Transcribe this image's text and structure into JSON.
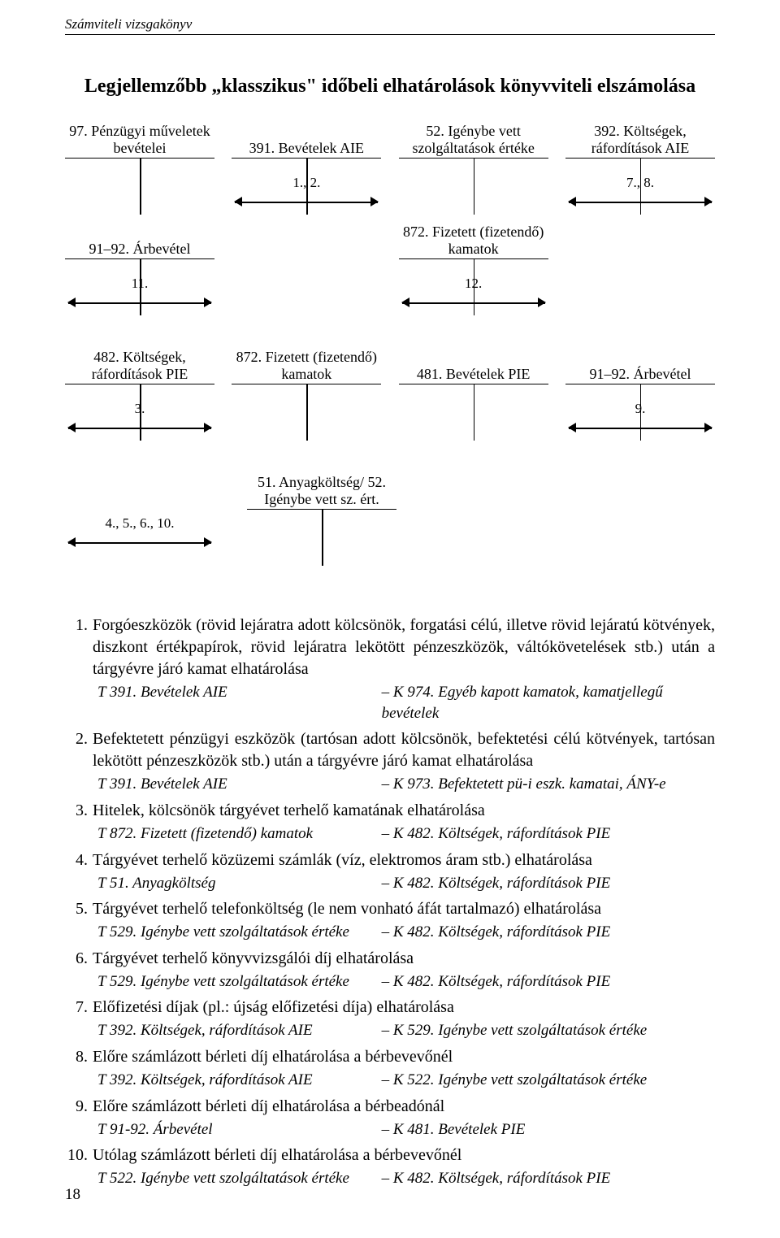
{
  "running_header": "Számviteli vizsgakönyv",
  "title": "Legjellemzőbb „klasszikus\" időbeli elhatárolások könyvviteli elszámolása",
  "page_number": "18",
  "diag": {
    "row1": [
      {
        "label": "97. Pénzügyi műveletek bevételei",
        "arrow": ""
      },
      {
        "label": "391. Bevételek AIE",
        "arrow": "1., 2."
      },
      {
        "label": "52. Igénybe vett szolgáltatások értéke",
        "arrow": ""
      },
      {
        "label": "392. Költségek, ráfordítások AIE",
        "arrow": "7., 8."
      }
    ],
    "row2": [
      {
        "label": "91–92. Árbevétel",
        "arrow": "11."
      },
      {
        "label": "",
        "arrow": "",
        "hidden": true
      },
      {
        "label": "872. Fizetett (fizetendő) kamatok",
        "arrow": "12."
      },
      {
        "label": "",
        "arrow": "",
        "hidden": true
      }
    ],
    "row3": [
      {
        "label": "482. Költségek, ráfordítások PIE",
        "arrow": "3."
      },
      {
        "label": "872. Fizetett (fizetendő) kamatok",
        "arrow": ""
      },
      {
        "label": "481. Bevételek PIE",
        "arrow": ""
      },
      {
        "label": "91–92. Árbevétel",
        "arrow": "9."
      }
    ],
    "row4": [
      {
        "label": "",
        "arrow": "4., 5., 6., 10.",
        "blank_label": true
      },
      {
        "label": "51. Anyagköltség/ 52. Igénybe vett sz. ért.",
        "arrow": ""
      }
    ]
  },
  "list": [
    {
      "n": "1.",
      "text": "Forgóeszközök (rövid lejáratra adott kölcsönök, forgatási célú, illetve rövid lejáratú kötvények, diszkont értékpapírok, rövid lejáratra lekötött pénzeszközök, váltókövetelések stb.) után a tárgyévre járó kamat elhatárolása",
      "subs": [
        {
          "l": "T 391. Bevételek AIE",
          "r": "– K 974. Egyéb kapott kamatok, kamatjellegű bevételek"
        }
      ]
    },
    {
      "n": "2.",
      "text": "Befektetett pénzügyi eszközök (tartósan adott kölcsönök, befektetési célú kötvények, tartósan lekötött pénzeszközök stb.) után a tárgyévre járó kamat elhatárolása",
      "subs": [
        {
          "l": "T 391. Bevételek AIE",
          "r": "– K 973. Befektetett pü-i eszk. kamatai, ÁNY-e"
        }
      ]
    },
    {
      "n": "3.",
      "text": "Hitelek, kölcsönök tárgyévet terhelő kamatának elhatárolása",
      "subs": [
        {
          "l": "T 872. Fizetett (fizetendő) kamatok",
          "r": "– K 482. Költségek, ráfordítások PIE"
        }
      ]
    },
    {
      "n": "4.",
      "text": "Tárgyévet terhelő közüzemi számlák (víz, elektromos áram stb.) elhatárolása",
      "subs": [
        {
          "l": "T 51. Anyagköltség",
          "r": "– K 482. Költségek, ráfordítások PIE"
        }
      ]
    },
    {
      "n": "5.",
      "text": "Tárgyévet terhelő telefonköltség (le nem vonható áfát tartalmazó) elhatárolása",
      "subs": [
        {
          "l": "T 529. Igénybe vett szolgáltatások értéke",
          "r": "– K 482. Költségek, ráfordítások PIE"
        }
      ]
    },
    {
      "n": "6.",
      "text": "Tárgyévet terhelő könyvvizsgálói díj elhatárolása",
      "subs": [
        {
          "l": "T 529. Igénybe vett szolgáltatások értéke",
          "r": "– K 482. Költségek, ráfordítások PIE"
        }
      ]
    },
    {
      "n": "7.",
      "text": "Előfizetési díjak (pl.: újság előfizetési díja) elhatárolása",
      "subs": [
        {
          "l": "T 392. Költségek, ráfordítások AIE",
          "r": "– K 529. Igénybe vett szolgáltatások értéke"
        }
      ]
    },
    {
      "n": "8.",
      "text": "Előre számlázott bérleti díj elhatárolása a bérbevevőnél",
      "subs": [
        {
          "l": "T 392. Költségek, ráfordítások AIE",
          "r": "– K 522. Igénybe vett szolgáltatások értéke"
        }
      ]
    },
    {
      "n": "9.",
      "text": "Előre számlázott bérleti díj elhatárolása a bérbeadónál",
      "subs": [
        {
          "l": "T 91-92. Árbevétel",
          "r": "– K 481. Bevételek PIE"
        }
      ]
    },
    {
      "n": "10.",
      "text": "Utólag számlázott bérleti díj elhatárolása a bérbevevőnél",
      "subs": [
        {
          "l": "T 522. Igénybe vett szolgáltatások értéke",
          "r": "– K 482. Költségek, ráfordítások PIE"
        }
      ]
    }
  ]
}
